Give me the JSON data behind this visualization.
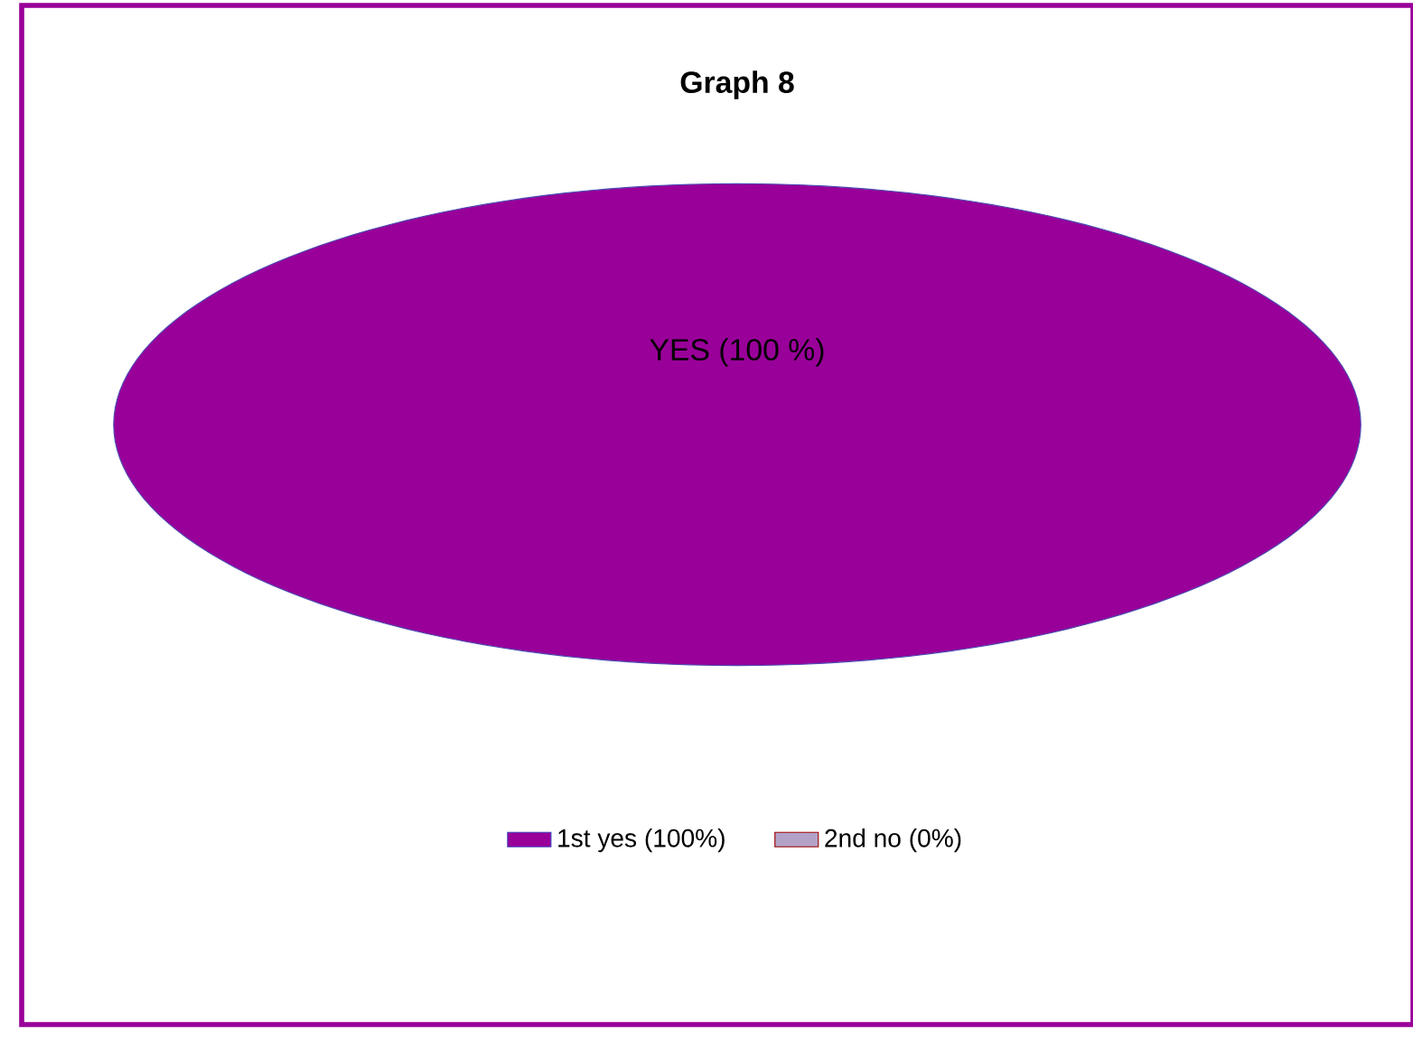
{
  "chart_data": {
    "type": "pie",
    "title": "Graph 8",
    "categories": [
      "1st yes (100%)",
      "2nd no (0%)"
    ],
    "values": [
      100,
      0
    ],
    "colors": [
      "#990099",
      "#b3a2c7"
    ],
    "value_labels": [
      "YES (100 %)",
      null
    ],
    "legend": "bottom"
  }
}
